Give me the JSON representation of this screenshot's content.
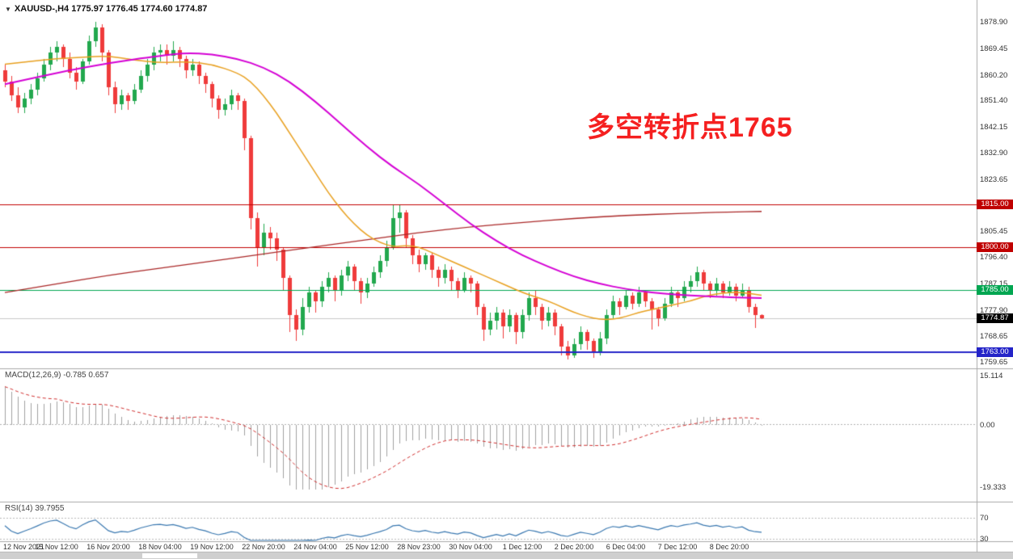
{
  "header": {
    "dropdown_icon": "▼",
    "symbol_info": "XAUUSD-,H4 1775.97 1776.45 1774.60 1774.87"
  },
  "annotation": {
    "text": "多空转折点1765",
    "color": "#f52020"
  },
  "colors": {
    "bull": "#22a84e",
    "bear": "#ef3b3b",
    "bid_line": "#c8c8c8",
    "separator": "#a8a8a8",
    "axis_text": "#333333"
  },
  "chart_data": [
    {
      "type": "candlestick",
      "title": "XAUUSD- H4",
      "x_tick_every": 8,
      "x_tick_labels": [
        "12 Nov 2021",
        "15 Nov 12:00",
        "16 Nov 20:00",
        "18 Nov 04:00",
        "19 Nov 12:00",
        "22 Nov 20:00",
        "24 Nov 04:00",
        "25 Nov 12:00",
        "28 Nov 23:00",
        "30 Nov 04:00",
        "1 Dec 12:00",
        "2 Dec 20:00",
        "6 Dec 04:00",
        "7 Dec 12:00",
        "8 Dec 20:00"
      ],
      "y_axis_labels": [
        1878.9,
        1869.45,
        1860.2,
        1851.4,
        1842.15,
        1832.9,
        1823.65,
        1805.45,
        1796.4,
        1787.15,
        1777.9,
        1768.65,
        1759.65
      ],
      "y_range": [
        1755.0,
        1886.5
      ],
      "candles": [
        [
          1862,
          1864,
          1856,
          1858
        ],
        [
          1858,
          1860,
          1851,
          1853
        ],
        [
          1853,
          1856,
          1847,
          1849
        ],
        [
          1849,
          1854,
          1847,
          1852
        ],
        [
          1852,
          1857,
          1850,
          1855
        ],
        [
          1855,
          1861,
          1853,
          1859
        ],
        [
          1859,
          1866,
          1858,
          1864
        ],
        [
          1864,
          1870,
          1862,
          1868
        ],
        [
          1868,
          1872,
          1865,
          1870
        ],
        [
          1870,
          1871,
          1863,
          1866
        ],
        [
          1866,
          1868,
          1859,
          1861
        ],
        [
          1861,
          1863,
          1855,
          1858
        ],
        [
          1858,
          1866,
          1857,
          1865
        ],
        [
          1865,
          1874,
          1864,
          1872
        ],
        [
          1872,
          1879,
          1870,
          1877
        ],
        [
          1877,
          1878,
          1865,
          1868
        ],
        [
          1868,
          1869,
          1853,
          1856
        ],
        [
          1856,
          1858,
          1847,
          1850
        ],
        [
          1850,
          1855,
          1848,
          1853
        ],
        [
          1853,
          1854,
          1848,
          1851
        ],
        [
          1851,
          1857,
          1850,
          1855
        ],
        [
          1855,
          1862,
          1854,
          1860
        ],
        [
          1860,
          1866,
          1858,
          1864
        ],
        [
          1864,
          1870,
          1862,
          1868
        ],
        [
          1868,
          1871,
          1865,
          1869
        ],
        [
          1869,
          1871,
          1864,
          1867
        ],
        [
          1867,
          1872,
          1865,
          1869
        ],
        [
          1869,
          1870,
          1863,
          1866
        ],
        [
          1866,
          1867,
          1859,
          1862
        ],
        [
          1862,
          1866,
          1860,
          1864
        ],
        [
          1864,
          1865,
          1857,
          1860
        ],
        [
          1860,
          1861,
          1854,
          1857
        ],
        [
          1857,
          1858,
          1849,
          1852
        ],
        [
          1852,
          1853,
          1845,
          1848
        ],
        [
          1848,
          1852,
          1846,
          1850
        ],
        [
          1850,
          1855,
          1848,
          1853
        ],
        [
          1853,
          1854,
          1848,
          1851
        ],
        [
          1851,
          1852,
          1834,
          1838
        ],
        [
          1838,
          1839,
          1806,
          1810
        ],
        [
          1810,
          1812,
          1793,
          1800
        ],
        [
          1800,
          1808,
          1797,
          1805
        ],
        [
          1805,
          1807,
          1799,
          1803
        ],
        [
          1803,
          1805,
          1795,
          1799
        ],
        [
          1799,
          1800,
          1785,
          1789
        ],
        [
          1789,
          1790,
          1770,
          1776
        ],
        [
          1776,
          1778,
          1767,
          1771
        ],
        [
          1771,
          1782,
          1769,
          1779
        ],
        [
          1779,
          1786,
          1777,
          1784
        ],
        [
          1784,
          1785,
          1777,
          1781
        ],
        [
          1781,
          1788,
          1779,
          1786
        ],
        [
          1786,
          1791,
          1784,
          1789
        ],
        [
          1789,
          1790,
          1781,
          1785
        ],
        [
          1785,
          1792,
          1783,
          1790
        ],
        [
          1790,
          1795,
          1788,
          1793
        ],
        [
          1793,
          1794,
          1785,
          1788
        ],
        [
          1788,
          1789,
          1780,
          1784
        ],
        [
          1784,
          1789,
          1782,
          1787
        ],
        [
          1787,
          1793,
          1786,
          1791
        ],
        [
          1791,
          1797,
          1789,
          1795
        ],
        [
          1795,
          1802,
          1793,
          1800
        ],
        [
          1800,
          1815,
          1799,
          1810
        ],
        [
          1810,
          1815,
          1805,
          1812
        ],
        [
          1812,
          1813,
          1800,
          1803
        ],
        [
          1803,
          1804,
          1794,
          1797
        ],
        [
          1797,
          1799,
          1791,
          1794
        ],
        [
          1794,
          1798,
          1792,
          1797
        ],
        [
          1797,
          1798,
          1789,
          1792
        ],
        [
          1792,
          1793,
          1786,
          1789
        ],
        [
          1789,
          1794,
          1787,
          1792
        ],
        [
          1792,
          1793,
          1785,
          1788
        ],
        [
          1788,
          1789,
          1782,
          1785
        ],
        [
          1785,
          1791,
          1784,
          1789
        ],
        [
          1789,
          1790,
          1784,
          1787
        ],
        [
          1787,
          1788,
          1776,
          1779
        ],
        [
          1779,
          1780,
          1767,
          1771
        ],
        [
          1771,
          1777,
          1769,
          1774
        ],
        [
          1774,
          1779,
          1771,
          1777
        ],
        [
          1777,
          1778,
          1768,
          1772
        ],
        [
          1772,
          1778,
          1770,
          1776
        ],
        [
          1776,
          1777,
          1766,
          1770
        ],
        [
          1770,
          1778,
          1768,
          1776
        ],
        [
          1776,
          1784,
          1774,
          1782
        ],
        [
          1782,
          1785,
          1776,
          1779
        ],
        [
          1779,
          1780,
          1771,
          1774
        ],
        [
          1774,
          1779,
          1772,
          1777
        ],
        [
          1777,
          1778,
          1769,
          1772
        ],
        [
          1772,
          1773,
          1762,
          1765
        ],
        [
          1765,
          1767,
          1760.5,
          1762
        ],
        [
          1762,
          1768,
          1761,
          1766
        ],
        [
          1766,
          1772,
          1764,
          1770
        ],
        [
          1770,
          1771,
          1764,
          1767
        ],
        [
          1767,
          1768,
          1761,
          1763
        ],
        [
          1763,
          1770,
          1762,
          1768
        ],
        [
          1768,
          1778,
          1766,
          1776
        ],
        [
          1776,
          1783,
          1775,
          1781
        ],
        [
          1781,
          1782,
          1776,
          1779
        ],
        [
          1779,
          1785,
          1778,
          1783
        ],
        [
          1783,
          1784,
          1778,
          1780
        ],
        [
          1780,
          1786,
          1779,
          1784
        ],
        [
          1784,
          1785,
          1779,
          1781
        ],
        [
          1781,
          1782,
          1771,
          1778
        ],
        [
          1778,
          1779,
          1772,
          1775
        ],
        [
          1775,
          1782,
          1774,
          1780
        ],
        [
          1780,
          1786,
          1779,
          1784
        ],
        [
          1784,
          1785,
          1779,
          1782
        ],
        [
          1782,
          1788,
          1781,
          1786
        ],
        [
          1786,
          1790,
          1784,
          1788
        ],
        [
          1788,
          1793,
          1786,
          1791
        ],
        [
          1791,
          1792,
          1785,
          1787
        ],
        [
          1787,
          1788,
          1782,
          1785
        ],
        [
          1785,
          1789,
          1783,
          1787
        ],
        [
          1787,
          1788,
          1782,
          1784
        ],
        [
          1784,
          1788,
          1783,
          1786
        ],
        [
          1786,
          1787,
          1781,
          1783
        ],
        [
          1783,
          1787,
          1782,
          1785
        ],
        [
          1785,
          1786,
          1777,
          1779
        ],
        [
          1779,
          1780,
          1771.5,
          1776
        ],
        [
          1775.97,
          1776.45,
          1774.6,
          1774.87
        ]
      ],
      "moving_averages": [
        {
          "name": "ma-magenta-slow",
          "color": "#d400d4",
          "points": [
            [
              0,
              1857
            ],
            [
              8,
              1861
            ],
            [
              16,
              1864.5
            ],
            [
              24,
              1867
            ],
            [
              28,
              1868
            ],
            [
              32,
              1867.5
            ],
            [
              36,
              1866
            ],
            [
              40,
              1863
            ],
            [
              44,
              1858
            ],
            [
              48,
              1851
            ],
            [
              52,
              1843
            ],
            [
              56,
              1835
            ],
            [
              60,
              1828
            ],
            [
              64,
              1822
            ],
            [
              68,
              1815
            ],
            [
              72,
              1808
            ],
            [
              76,
              1802
            ],
            [
              80,
              1797
            ],
            [
              84,
              1793
            ],
            [
              88,
              1789.5
            ],
            [
              92,
              1787
            ],
            [
              96,
              1785.2
            ],
            [
              100,
              1784
            ],
            [
              104,
              1783.2
            ],
            [
              108,
              1782.7
            ],
            [
              112,
              1782.3
            ],
            [
              117,
              1782
            ]
          ]
        },
        {
          "name": "ma-orange-medium",
          "color": "#e8a020",
          "points": [
            [
              0,
              1864
            ],
            [
              4,
              1865
            ],
            [
              8,
              1866
            ],
            [
              12,
              1866.5
            ],
            [
              16,
              1867
            ],
            [
              20,
              1865.5
            ],
            [
              24,
              1864.5
            ],
            [
              28,
              1865
            ],
            [
              32,
              1864
            ],
            [
              36,
              1861
            ],
            [
              38,
              1858
            ],
            [
              40,
              1853
            ],
            [
              42,
              1847
            ],
            [
              44,
              1840
            ],
            [
              46,
              1833
            ],
            [
              48,
              1826
            ],
            [
              50,
              1819
            ],
            [
              52,
              1813
            ],
            [
              54,
              1808
            ],
            [
              56,
              1804
            ],
            [
              58,
              1801.5
            ],
            [
              60,
              1800
            ],
            [
              62,
              1800.5
            ],
            [
              64,
              1800
            ],
            [
              66,
              1798
            ],
            [
              68,
              1796
            ],
            [
              70,
              1794
            ],
            [
              72,
              1792
            ],
            [
              74,
              1790
            ],
            [
              76,
              1788
            ],
            [
              78,
              1786
            ],
            [
              80,
              1784
            ],
            [
              82,
              1782.5
            ],
            [
              84,
              1781
            ],
            [
              86,
              1779
            ],
            [
              88,
              1777
            ],
            [
              90,
              1775.5
            ],
            [
              92,
              1774.5
            ],
            [
              94,
              1774.5
            ],
            [
              96,
              1775.5
            ],
            [
              98,
              1777
            ],
            [
              100,
              1778
            ],
            [
              102,
              1779
            ],
            [
              104,
              1780
            ],
            [
              106,
              1781
            ],
            [
              108,
              1782.5
            ],
            [
              110,
              1783.5
            ],
            [
              112,
              1784
            ],
            [
              114,
              1784
            ],
            [
              117,
              1783
            ]
          ]
        },
        {
          "name": "ma-darkred-long",
          "color": "#aa2828",
          "points": [
            [
              0,
              1784
            ],
            [
              8,
              1787
            ],
            [
              16,
              1790
            ],
            [
              24,
              1792.5
            ],
            [
              32,
              1795
            ],
            [
              40,
              1797.5
            ],
            [
              48,
              1800
            ],
            [
              56,
              1802.5
            ],
            [
              64,
              1805
            ],
            [
              72,
              1807
            ],
            [
              80,
              1808.5
            ],
            [
              88,
              1810
            ],
            [
              96,
              1811
            ],
            [
              104,
              1811.7
            ],
            [
              112,
              1812.2
            ],
            [
              117,
              1812.4
            ]
          ]
        }
      ],
      "horizontal_lines": [
        {
          "price": 1815.0,
          "label": "1815.00",
          "color": "#c00000",
          "width": 1
        },
        {
          "price": 1800.0,
          "label": "1800.00",
          "color": "#c00000",
          "width": 1
        },
        {
          "price": 1785.0,
          "label": "1785.00",
          "color": "#00a651",
          "width": 1
        },
        {
          "price": 1763.0,
          "label": "1763.00",
          "color": "#2424c8",
          "width": 2
        }
      ],
      "bid": {
        "price": 1774.87,
        "label": "1774.87",
        "tag_color": "#000000"
      }
    },
    {
      "type": "bar",
      "name": "MACD",
      "params": [
        12,
        26,
        9
      ],
      "label": "MACD(12,26,9) -0.785 0.657",
      "value_main": -0.785,
      "value_signal": 0.657,
      "axis_labels": [
        "15.114",
        "0.00",
        "-19.333"
      ],
      "y_range": [
        -19.333,
        15.114
      ],
      "bar_color": "#a0a0a0",
      "signal_color": "#d03030"
    },
    {
      "type": "line",
      "name": "RSI",
      "params": [
        14
      ],
      "label": "RSI(14) 39.7955",
      "value": 39.7955,
      "levels": [
        70,
        30
      ],
      "axis_labels": [
        "70",
        "30"
      ],
      "line_color": "#3a78b0"
    }
  ]
}
